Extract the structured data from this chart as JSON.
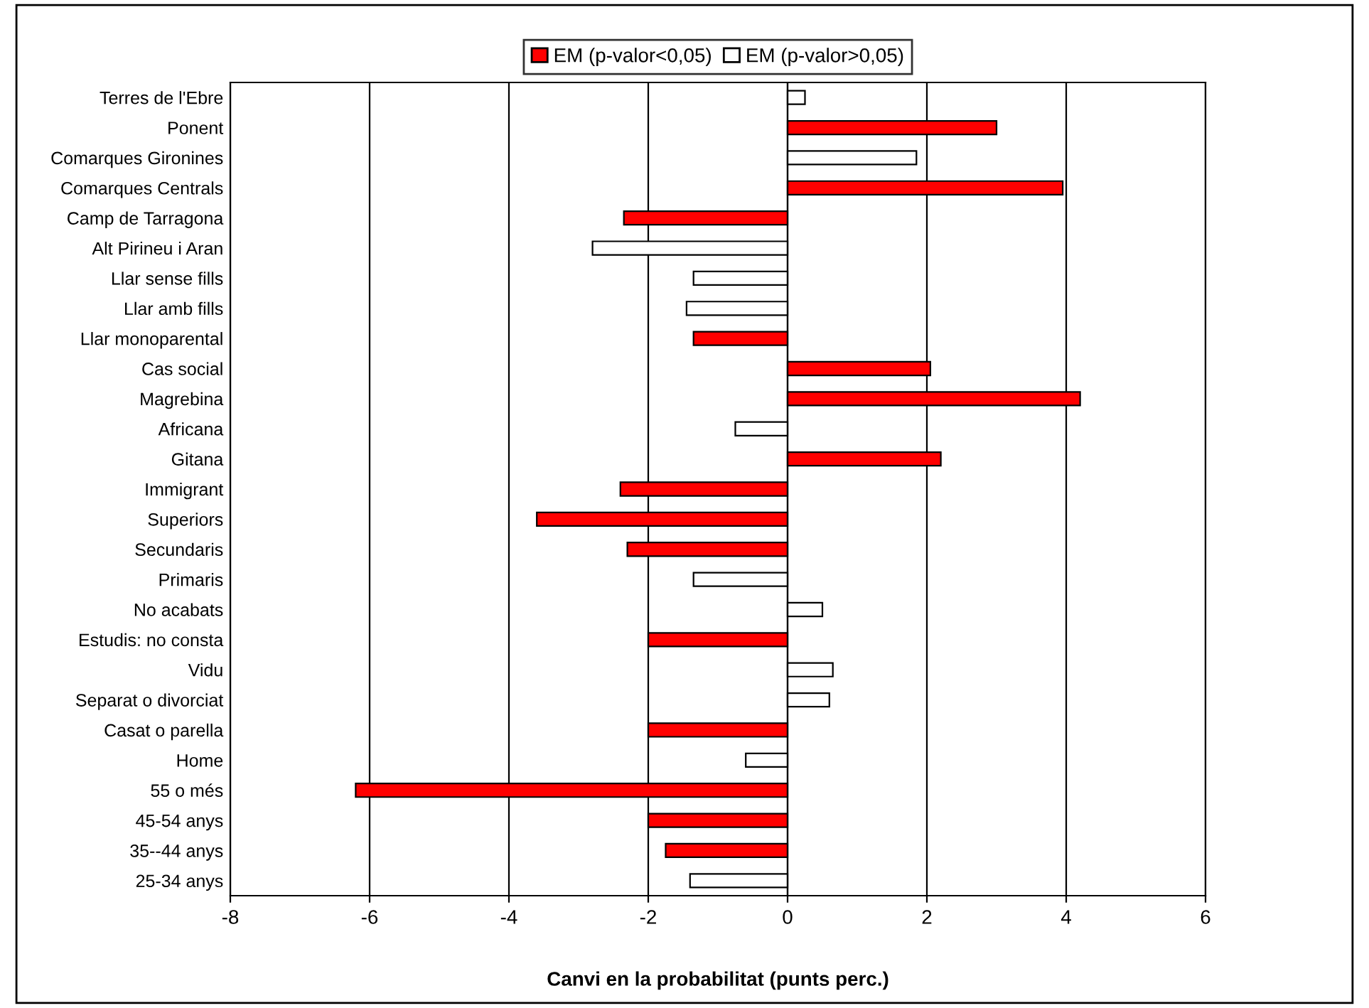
{
  "chart_data": {
    "type": "bar",
    "orientation": "horizontal",
    "xlabel": "Canvi en la probabilitat (punts perc.)",
    "categories": [
      "Terres de l'Ebre",
      "Ponent",
      "Comarques Gironines",
      "Comarques Centrals",
      "Camp de Tarragona",
      "Alt Pirineu i Aran",
      "Llar sense fills",
      "Llar amb fills",
      "Llar monoparental",
      "Cas social",
      "Magrebina",
      "Africana",
      "Gitana",
      "Immigrant",
      "Superiors",
      "Secundaris",
      "Primaris",
      "No acabats",
      "Estudis: no consta",
      "Vidu",
      "Separat o divorciat",
      "Casat o parella",
      "Home",
      "55 o més",
      "45-54 anys",
      "35--44 anys",
      "25-34 anys"
    ],
    "series": [
      {
        "name": "EM (p-valor<0,05)",
        "color": "#ff0000",
        "values": [
          null,
          3.0,
          null,
          3.95,
          -2.35,
          null,
          null,
          null,
          -1.35,
          2.05,
          4.2,
          null,
          2.2,
          -2.4,
          -3.6,
          -2.3,
          null,
          null,
          -2.0,
          null,
          null,
          -2.0,
          null,
          -6.2,
          -2.0,
          -1.75,
          null
        ]
      },
      {
        "name": "EM (p-valor>0,05)",
        "color": "#ffffff",
        "values": [
          0.25,
          null,
          1.85,
          null,
          null,
          -2.8,
          -1.35,
          -1.45,
          null,
          null,
          null,
          -0.75,
          null,
          null,
          null,
          null,
          -1.35,
          0.5,
          null,
          0.65,
          0.6,
          null,
          -0.6,
          null,
          null,
          null,
          -1.4
        ]
      }
    ],
    "xlim": [
      -8,
      6
    ],
    "xticks": [
      -8,
      -6,
      -4,
      -2,
      0,
      2,
      4,
      6
    ],
    "grid": "x",
    "legend": "top"
  }
}
